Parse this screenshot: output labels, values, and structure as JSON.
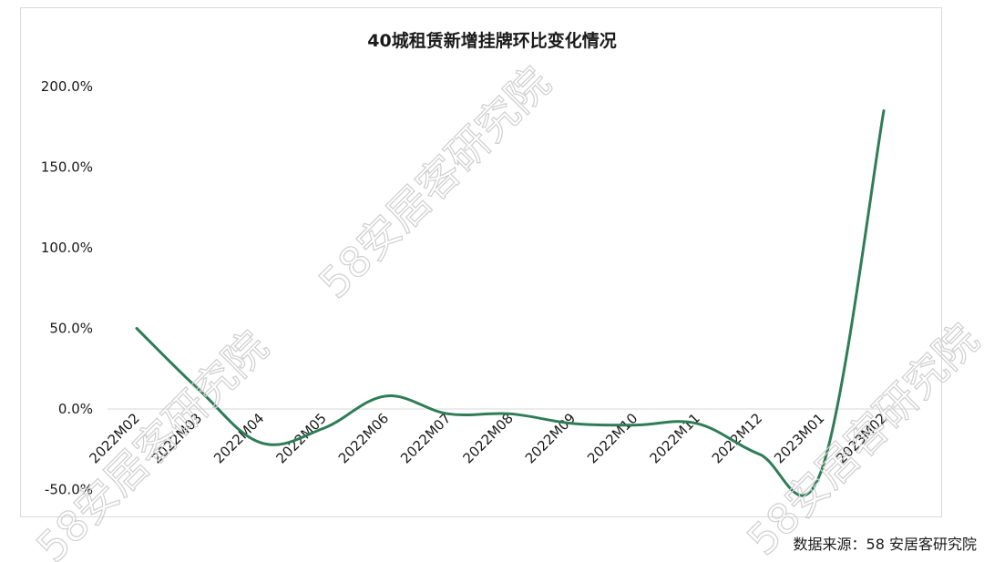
{
  "chart_data": {
    "type": "line",
    "title": "40城租赁新增挂牌环比变化情况",
    "xlabel": "",
    "ylabel": "",
    "categories": [
      "2022M02",
      "2022M03",
      "2022M04",
      "2022M05",
      "2022M06",
      "2022M07",
      "2022M08",
      "2022M09",
      "2022M10",
      "2022M11",
      "2022M12",
      "2023M01",
      "2023M02"
    ],
    "yticks": [
      "-50.0%",
      "0.0%",
      "50.0%",
      "100.0%",
      "150.0%",
      "200.0%"
    ],
    "ylim": [
      -50,
      200
    ],
    "series": [
      {
        "values": [
          50,
          12,
          -21,
          -12,
          8,
          -3,
          -3,
          -9,
          -10,
          -9,
          -28,
          -38,
          185
        ],
        "color": "#2e7d57"
      }
    ],
    "grid": false,
    "legend": "none"
  },
  "source_text": "数据来源：58 安居客研究院",
  "watermark_text": "58安居客研究院"
}
